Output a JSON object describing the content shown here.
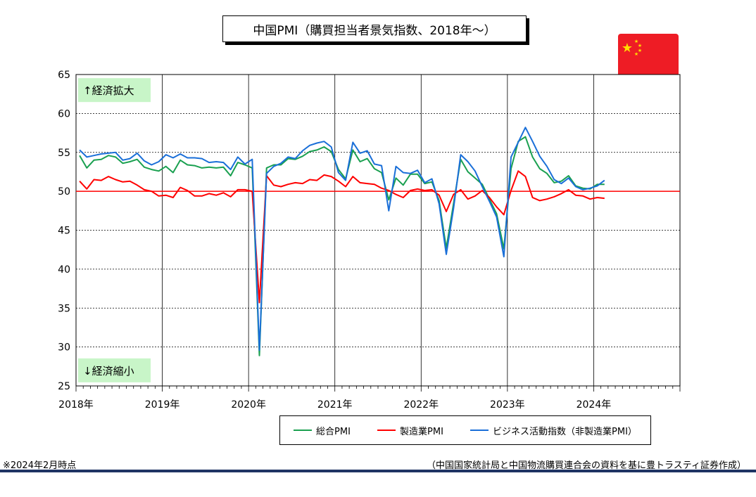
{
  "title": "中国PMI（購買担当者景気指数、2018年～）",
  "note_left": "※2024年2月時点",
  "note_right": "（中国国家統計局と中国物流購買連合会の資料を基に豊トラスティ証券作成）",
  "colors": {
    "composite": "#1aa050",
    "manufacturing": "#ff0000",
    "nonmanufacturing": "#1a6fd8",
    "reference_line": "#ff0000",
    "annotation_bg": "#c8f5c8",
    "bottom_bar": "#1f3464",
    "flag_red": "#ee1c25",
    "flag_star": "#ffde00"
  },
  "icons": {
    "flag": "china-flag-icon"
  },
  "chart_data": {
    "type": "line",
    "title": "中国PMI（購買担当者景気指数、2018年～）",
    "ylim": [
      25,
      65
    ],
    "yticks": [
      25,
      30,
      35,
      40,
      45,
      50,
      55,
      60,
      65
    ],
    "x_tick_labels": [
      "2018年",
      "2019年",
      "2020年",
      "2021年",
      "2022年",
      "2023年",
      "2024年"
    ],
    "x_range_months": [
      "2018-01",
      "2024-12"
    ],
    "grid": "dashed",
    "reference_value": 50,
    "annotations": [
      {
        "text": "↑経済拡大",
        "value": 63
      },
      {
        "text": "↓経済縮小",
        "value": 27
      }
    ],
    "x_start": "2018-01",
    "series": [
      {
        "name": "総合PMI",
        "key": "composite",
        "values": [
          54.6,
          53.0,
          54.0,
          54.1,
          54.6,
          54.4,
          53.6,
          53.8,
          54.1,
          53.1,
          52.8,
          52.6,
          53.2,
          52.4,
          54.0,
          53.4,
          53.3,
          53.0,
          53.1,
          53.0,
          53.1,
          52.0,
          53.7,
          53.4,
          53.0,
          28.9,
          53.0,
          53.4,
          53.4,
          54.2,
          54.1,
          54.5,
          55.1,
          55.3,
          55.7,
          55.1,
          52.8,
          51.6,
          55.3,
          53.8,
          54.2,
          52.9,
          52.4,
          48.9,
          51.7,
          50.8,
          52.2,
          52.2,
          51.0,
          51.2,
          48.8,
          42.7,
          48.4,
          54.1,
          52.5,
          51.7,
          50.9,
          49.0,
          47.1,
          42.6,
          52.9,
          56.4,
          57.0,
          54.4,
          52.9,
          52.3,
          51.1,
          51.3,
          52.0,
          50.7,
          50.4,
          50.3,
          50.9,
          50.9
        ],
        "color": "#1aa050"
      },
      {
        "name": "製造業PMI",
        "key": "manufacturing",
        "values": [
          51.3,
          50.3,
          51.5,
          51.4,
          51.9,
          51.5,
          51.2,
          51.3,
          50.8,
          50.2,
          50.0,
          49.4,
          49.5,
          49.2,
          50.5,
          50.1,
          49.4,
          49.4,
          49.7,
          49.5,
          49.8,
          49.3,
          50.2,
          50.2,
          50.0,
          35.7,
          52.0,
          50.8,
          50.6,
          50.9,
          51.1,
          51.0,
          51.5,
          51.4,
          52.1,
          51.9,
          51.3,
          50.6,
          51.9,
          51.1,
          51.0,
          50.9,
          50.4,
          50.1,
          49.6,
          49.2,
          50.1,
          50.3,
          50.1,
          50.2,
          49.5,
          47.4,
          49.6,
          50.2,
          49.0,
          49.4,
          50.1,
          49.2,
          48.0,
          47.0,
          50.1,
          52.6,
          51.9,
          49.2,
          48.8,
          49.0,
          49.3,
          49.7,
          50.2,
          49.5,
          49.4,
          49.0,
          49.2,
          49.1
        ],
        "color": "#ff0000"
      },
      {
        "name": "ビジネス活動指数（非製造業PMI）",
        "key": "nonmanufacturing",
        "values": [
          55.3,
          54.4,
          54.6,
          54.8,
          54.9,
          55.0,
          54.0,
          54.2,
          54.9,
          53.9,
          53.4,
          53.8,
          54.7,
          54.3,
          54.8,
          54.3,
          54.3,
          54.2,
          53.7,
          53.8,
          53.7,
          52.8,
          54.4,
          53.5,
          54.1,
          29.6,
          52.3,
          53.2,
          53.6,
          54.4,
          54.2,
          55.2,
          55.9,
          56.2,
          56.4,
          55.7,
          52.4,
          51.4,
          56.3,
          54.9,
          55.2,
          53.5,
          53.3,
          47.5,
          53.2,
          52.4,
          52.3,
          52.7,
          51.1,
          51.6,
          48.4,
          41.9,
          47.8,
          54.7,
          53.8,
          52.6,
          50.6,
          48.7,
          46.7,
          41.6,
          54.4,
          56.3,
          58.2,
          56.4,
          54.5,
          53.2,
          51.5,
          51.0,
          51.7,
          50.6,
          50.2,
          50.4,
          50.7,
          51.4
        ],
        "color": "#1a6fd8"
      }
    ]
  }
}
